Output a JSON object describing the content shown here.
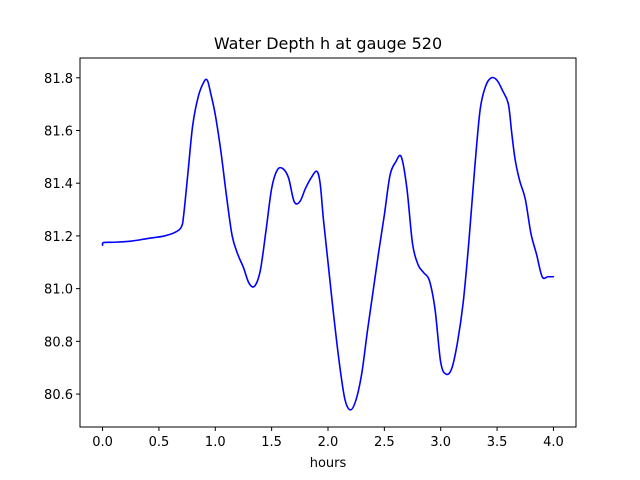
{
  "chart_data": {
    "type": "line",
    "title": "Water Depth h at gauge 520",
    "xlabel": "hours",
    "ylabel": "",
    "xlim": [
      -0.2,
      4.2
    ],
    "ylim": [
      80.475,
      81.875
    ],
    "xticks": [
      0.0,
      0.5,
      1.0,
      1.5,
      2.0,
      2.5,
      3.0,
      3.5,
      4.0
    ],
    "xtick_labels": [
      "0.0",
      "0.5",
      "1.0",
      "1.5",
      "2.0",
      "2.5",
      "3.0",
      "3.5",
      "4.0"
    ],
    "yticks": [
      80.6,
      80.8,
      81.0,
      81.2,
      81.4,
      81.6,
      81.8
    ],
    "ytick_labels": [
      "80.6",
      "80.8",
      "81.0",
      "81.2",
      "81.4",
      "81.6",
      "81.8"
    ],
    "grid": false,
    "legend": "none",
    "series": [
      {
        "color": "#0000ff",
        "x": [
          0.0,
          0.01,
          0.1,
          0.25,
          0.4,
          0.55,
          0.65,
          0.7,
          0.72,
          0.76,
          0.8,
          0.85,
          0.9,
          0.93,
          0.96,
          1.0,
          1.05,
          1.1,
          1.15,
          1.2,
          1.25,
          1.3,
          1.35,
          1.4,
          1.45,
          1.5,
          1.55,
          1.6,
          1.65,
          1.7,
          1.75,
          1.8,
          1.85,
          1.9,
          1.93,
          1.96,
          2.0,
          2.05,
          2.1,
          2.15,
          2.2,
          2.25,
          2.3,
          2.35,
          2.4,
          2.45,
          2.5,
          2.55,
          2.6,
          2.65,
          2.7,
          2.75,
          2.8,
          2.85,
          2.9,
          2.95,
          3.0,
          3.05,
          3.1,
          3.15,
          3.2,
          3.25,
          3.3,
          3.35,
          3.4,
          3.45,
          3.5,
          3.55,
          3.6,
          3.63,
          3.66,
          3.7,
          3.75,
          3.8,
          3.85,
          3.9,
          3.95,
          4.0
        ],
        "y": [
          81.165,
          81.175,
          81.176,
          81.18,
          81.19,
          81.2,
          81.215,
          81.235,
          81.28,
          81.45,
          81.62,
          81.73,
          81.785,
          81.79,
          81.74,
          81.66,
          81.52,
          81.35,
          81.2,
          81.13,
          81.08,
          81.02,
          81.01,
          81.07,
          81.22,
          81.38,
          81.45,
          81.455,
          81.42,
          81.33,
          81.33,
          81.38,
          81.42,
          81.445,
          81.4,
          81.26,
          81.1,
          80.9,
          80.72,
          80.58,
          80.54,
          80.58,
          80.68,
          80.84,
          80.99,
          81.14,
          81.28,
          81.43,
          81.48,
          81.5,
          81.38,
          81.17,
          81.09,
          81.06,
          81.03,
          80.92,
          80.72,
          80.675,
          80.7,
          80.8,
          80.95,
          81.18,
          81.45,
          81.68,
          81.77,
          81.8,
          81.79,
          81.75,
          81.7,
          81.59,
          81.49,
          81.41,
          81.34,
          81.21,
          81.13,
          81.045,
          81.045,
          81.045
        ]
      }
    ]
  }
}
